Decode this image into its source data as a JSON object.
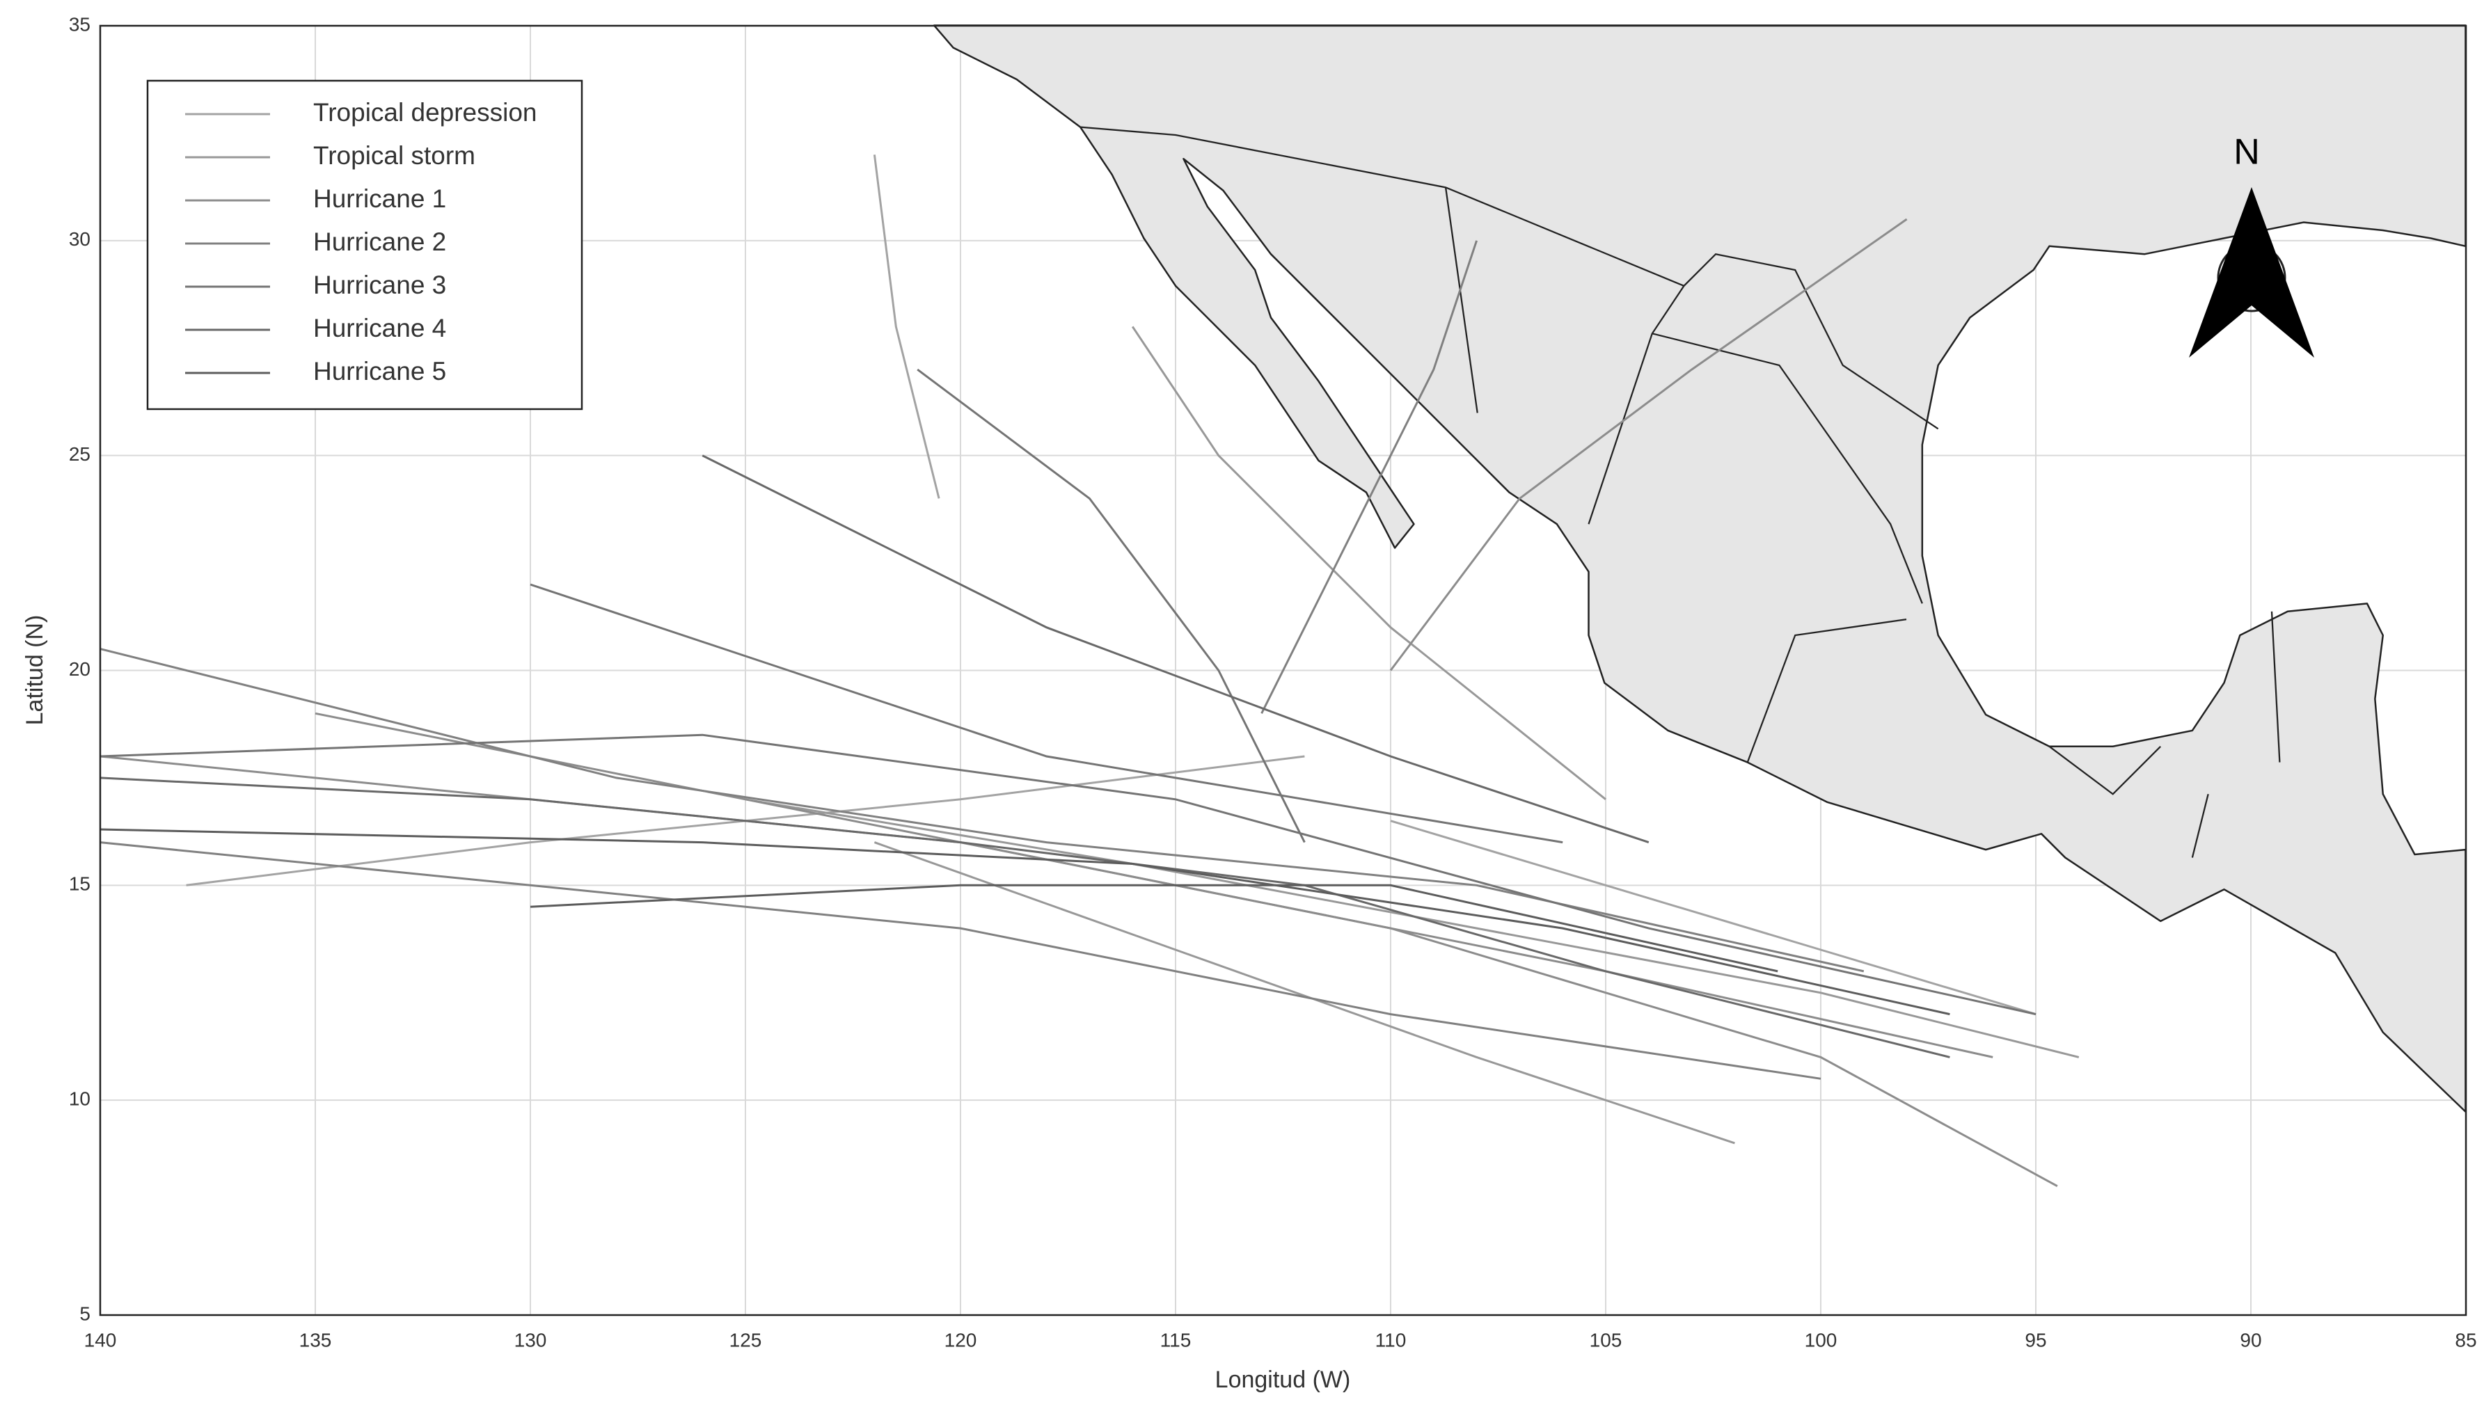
{
  "chart_data": {
    "type": "line",
    "xlabel": "Longitud (W)",
    "ylabel": "Latitud (N)",
    "north_label": "N",
    "xlim": [
      140,
      85
    ],
    "xticks": [
      140,
      135,
      130,
      125,
      120,
      115,
      110,
      105,
      100,
      95,
      90,
      85
    ],
    "ylim": [
      5,
      35
    ],
    "yticks": [
      5,
      10,
      15,
      20,
      25,
      30,
      35
    ],
    "grid": true,
    "legend": "upper left",
    "series": [
      {
        "name": "Tropical depression",
        "color": "#a3a3a3",
        "tracks": [
          {
            "x": [
              95,
              100,
              105,
              110
            ],
            "values": [
              12,
              13.5,
              15,
              16.5
            ]
          },
          {
            "x": [
              112,
              120,
              130,
              138
            ],
            "values": [
              18,
              17,
              16,
              15
            ]
          },
          {
            "x": [
              122,
              121.5,
              120.5
            ],
            "values": [
              32,
              28,
              24
            ]
          }
        ]
      },
      {
        "name": "Tropical storm",
        "color": "#989898",
        "tracks": [
          {
            "x": [
              94,
              100,
              108,
              116,
              125
            ],
            "values": [
              11,
              12.5,
              14,
              15.5,
              17
            ]
          },
          {
            "x": [
              102,
              108,
              115,
              122
            ],
            "values": [
              9,
              11,
              13.5,
              16
            ]
          },
          {
            "x": [
              105,
              110,
              114,
              116
            ],
            "values": [
              17,
              21,
              25,
              28
            ]
          }
        ]
      },
      {
        "name": "Hurricane 1",
        "color": "#8c8c8c",
        "tracks": [
          {
            "x": [
              96,
              105,
              115,
              125,
              135
            ],
            "values": [
              11,
              13,
              15,
              17,
              19
            ]
          },
          {
            "x": [
              94.5,
              100,
              110,
              120,
              130,
              140
            ],
            "values": [
              8,
              11,
              14,
              16,
              17,
              18
            ]
          },
          {
            "x": [
              98,
              103,
              107,
              110
            ],
            "values": [
              30.5,
              27,
              24,
              20
            ]
          }
        ]
      },
      {
        "name": "Hurricane 2",
        "color": "#808080",
        "tracks": [
          {
            "x": [
              99,
              108,
              118,
              128,
              140
            ],
            "values": [
              13,
              15,
              16,
              17.5,
              20.5
            ]
          },
          {
            "x": [
              113,
              111,
              109,
              108
            ],
            "values": [
              19,
              23,
              27,
              30
            ]
          },
          {
            "x": [
              100,
              110,
              120,
              130,
              140
            ],
            "values": [
              10.5,
              12,
              14,
              15,
              16
            ]
          }
        ]
      },
      {
        "name": "Hurricane 3",
        "color": "#747474",
        "tracks": [
          {
            "x": [
              95,
              104,
              115,
              126,
              140
            ],
            "values": [
              12,
              14,
              17,
              18.5,
              18
            ]
          },
          {
            "x": [
              106,
              112,
              118,
              124,
              130
            ],
            "values": [
              16,
              17,
              18,
              20,
              22
            ]
          },
          {
            "x": [
              121,
              117,
              114,
              112
            ],
            "values": [
              27,
              24,
              20,
              16
            ]
          }
        ]
      },
      {
        "name": "Hurricane 4",
        "color": "#686868",
        "tracks": [
          {
            "x": [
              97,
              105,
              112,
              120,
              130,
              140
            ],
            "values": [
              11,
              13,
              15,
              16,
              17,
              17.5
            ]
          },
          {
            "x": [
              104,
              110,
              118,
              126
            ],
            "values": [
              16,
              18,
              21,
              25
            ]
          }
        ]
      },
      {
        "name": "Hurricane 5",
        "color": "#5c5c5c",
        "tracks": [
          {
            "x": [
              97,
              106,
              116,
              126,
              140
            ],
            "values": [
              12,
              14,
              15.5,
              16,
              16.3
            ]
          },
          {
            "x": [
              101,
              110,
              120,
              130
            ],
            "values": [
              13,
              15,
              15,
              14.5
            ]
          }
        ]
      }
    ]
  }
}
